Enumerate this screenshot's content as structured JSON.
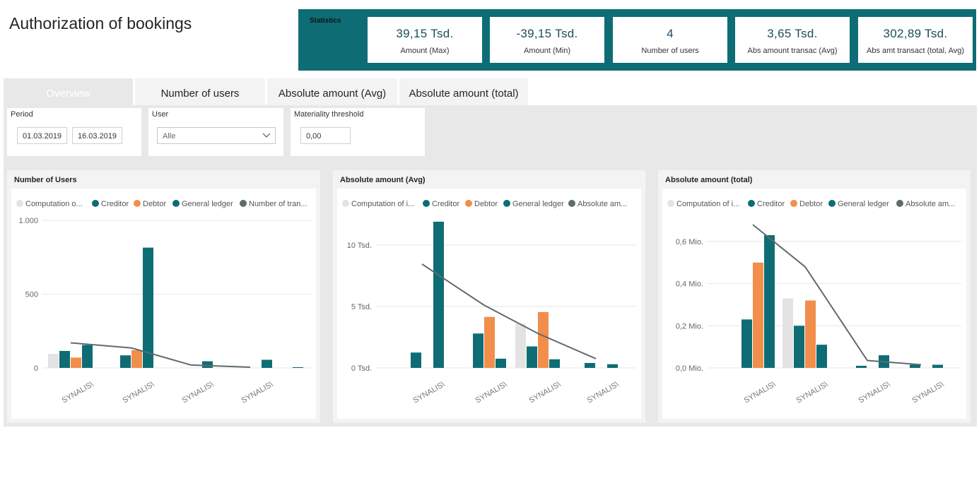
{
  "title": "Authorization of bookings",
  "stats": {
    "label": "Statistics",
    "kpis": [
      {
        "value": "39,15 Tsd.",
        "label": "Amount (Max)"
      },
      {
        "value": "-39,15 Tsd.",
        "label": "Amount (Min)"
      },
      {
        "value": "4",
        "label": "Number of users"
      },
      {
        "value": "3,65 Tsd.",
        "label": "Abs amount transac (Avg)"
      },
      {
        "value": "302,89 Tsd.",
        "label": "Abs amt transact (total, Avg)"
      }
    ]
  },
  "tabs": [
    "Overview",
    "Number of users",
    "Absolute amount (Avg)",
    "Absolute amount (total)"
  ],
  "filters": {
    "period_label": "Period",
    "period_from": "01.03.2019",
    "period_to": "16.03.2019",
    "user_label": "User",
    "user_value": "Alle",
    "threshold_label": "Materiality threshold",
    "threshold_value": "0,00"
  },
  "colors": {
    "computation": "#e3e3e3",
    "creditor": "#0e6d74",
    "debtor": "#f28e4c",
    "general_ledger": "#0e6d74",
    "line": "#5f6b6d"
  },
  "chart_data": [
    {
      "type": "bar",
      "title": "Number of Users",
      "legend": [
        "Computation o...",
        "Creditor",
        "Debtor",
        "General ledger",
        "Number of tran..."
      ],
      "categories": [
        "SYNALIS\\",
        "SYNALIS\\",
        "SYNALIS\\",
        "SYNALIS\\"
      ],
      "yticks": [
        "1.000",
        "500",
        "0"
      ],
      "ylim": [
        0,
        1000
      ],
      "series": [
        {
          "name": "Computation o...",
          "values": [
            95,
            0,
            0,
            0
          ]
        },
        {
          "name": "Creditor",
          "values": [
            115,
            85,
            0,
            0
          ]
        },
        {
          "name": "Debtor",
          "values": [
            70,
            120,
            0,
            0
          ]
        },
        {
          "name": "General ledger",
          "values": [
            155,
            815,
            45,
            55
          ]
        },
        {
          "name": "Number of tran...",
          "type": "line",
          "values": [
            170,
            135,
            20,
            5
          ]
        }
      ],
      "extra_bars": [
        {
          "category": 3,
          "series": "Creditor",
          "value": 5
        }
      ]
    },
    {
      "type": "bar",
      "title": "Absolute amount (Avg)",
      "legend": [
        "Computation of i...",
        "Creditor",
        "Debtor",
        "General ledger",
        "Absolute am..."
      ],
      "categories": [
        "SYNALIS\\",
        "SYNALIS\\",
        "SYNALIS\\",
        "SYNALIS\\"
      ],
      "yticks": [
        "10 Tsd.",
        "5 Tsd.",
        "0 Tsd."
      ],
      "ylim": [
        0,
        12500
      ],
      "series": [
        {
          "name": "Computation of i...",
          "values": [
            0,
            0,
            3600,
            0
          ]
        },
        {
          "name": "Creditor",
          "values": [
            1250,
            2800,
            1750,
            400
          ]
        },
        {
          "name": "Debtor",
          "values": [
            0,
            4150,
            4550,
            0
          ]
        },
        {
          "name": "General ledger",
          "values": [
            11900,
            750,
            700,
            300
          ]
        },
        {
          "name": "Absolute am...",
          "type": "line",
          "values": [
            8450,
            5100,
            2800,
            750
          ]
        }
      ]
    },
    {
      "type": "bar",
      "title": "Absolute amount (total)",
      "legend": [
        "Computation of i...",
        "Creditor",
        "Debtor",
        "General ledger",
        "Absolute am..."
      ],
      "categories": [
        "SYNALIS\\",
        "SYNALIS\\",
        "SYNALIS\\",
        "SYNALIS\\"
      ],
      "yticks": [
        "0,6 Mio.",
        "0,4 Mio.",
        "0,2 Mio.",
        "0,0 Mio."
      ],
      "ylim": [
        0,
        0.7
      ],
      "series": [
        {
          "name": "Computation of i...",
          "values": [
            0,
            0.33,
            0,
            0
          ]
        },
        {
          "name": "Creditor",
          "values": [
            0.23,
            0.2,
            0.01,
            0.015
          ]
        },
        {
          "name": "Debtor",
          "values": [
            0.5,
            0.32,
            0,
            0
          ]
        },
        {
          "name": "General ledger",
          "values": [
            0.63,
            0.11,
            0.06,
            0.015
          ]
        },
        {
          "name": "Absolute am...",
          "type": "line",
          "values": [
            0.68,
            0.48,
            0.035,
            0.015
          ]
        }
      ]
    }
  ]
}
